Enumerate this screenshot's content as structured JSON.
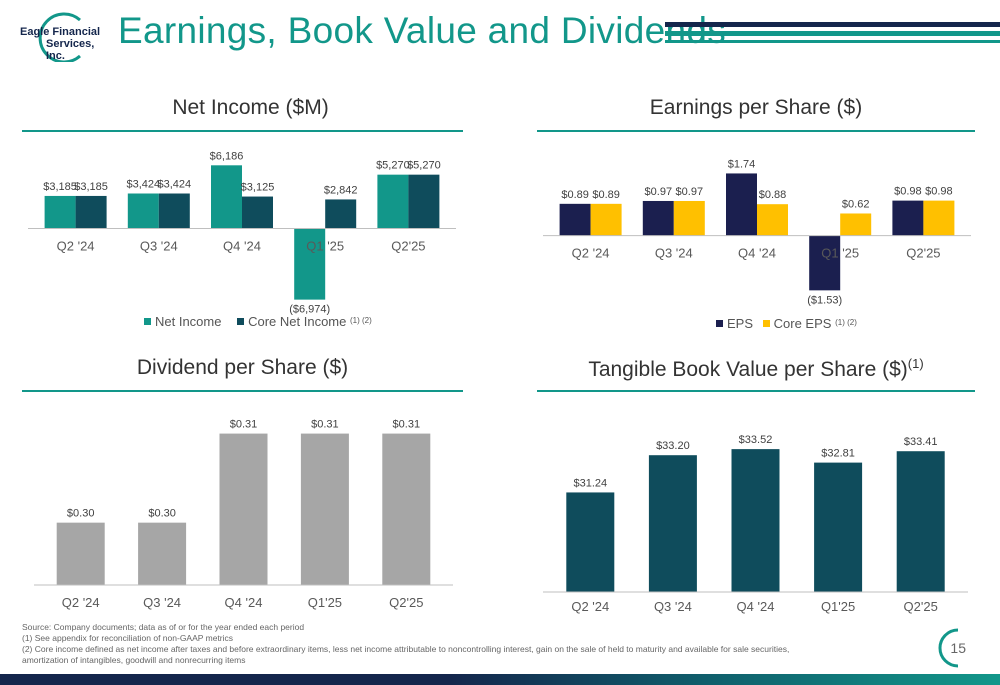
{
  "logo": {
    "line1": "Eagle Financial",
    "line2": "Services, Inc."
  },
  "page_title": "Earnings, Book Value and Dividends",
  "colors": {
    "teal": "#12978a",
    "dark_teal": "#0f4c5c",
    "navy": "#1b1f4f",
    "gold": "#ffc000",
    "gray": "#a6a6a6",
    "accent": "#12978a"
  },
  "chart_data": [
    {
      "id": "net-income",
      "type": "bar",
      "title": "Net Income ($M)",
      "categories": [
        "Q2 '24",
        "Q3 '24",
        "Q4 '24",
        "Q1 '25",
        "Q2'25"
      ],
      "series": [
        {
          "name": "Net Income",
          "values": [
            3.185,
            3.424,
            6.186,
            -6.974,
            5.27
          ],
          "labels": [
            "$3,185",
            "$3,424",
            "$6,186",
            "($6,974)",
            "$5,270"
          ]
        },
        {
          "name": "Core Net Income",
          "values": [
            3.185,
            3.424,
            3.125,
            2.842,
            5.27
          ],
          "labels": [
            "$3,185",
            "$3,424",
            "$3,125",
            "$2,842",
            "$5,270"
          ]
        }
      ],
      "legend_note": "(1) (2)",
      "legend_position": "bottom",
      "ylim": [
        -7.5,
        7.0
      ],
      "grid": false
    },
    {
      "id": "eps",
      "type": "bar",
      "title": "Earnings per Share ($)",
      "categories": [
        "Q2 '24",
        "Q3 '24",
        "Q4 '24",
        "Q1 '25",
        "Q2'25"
      ],
      "series": [
        {
          "name": "EPS",
          "values": [
            0.89,
            0.97,
            1.74,
            -1.53,
            0.98
          ],
          "labels": [
            "$0.89",
            "$0.97",
            "$1.74",
            "($1.53)",
            "$0.98"
          ]
        },
        {
          "name": "Core EPS",
          "values": [
            0.89,
            0.97,
            0.88,
            0.62,
            0.98
          ],
          "labels": [
            "$0.89",
            "$0.97",
            "$0.88",
            "$0.62",
            "$0.98"
          ]
        }
      ],
      "legend_note": "(1) (2)",
      "legend_position": "bottom",
      "ylim": [
        -1.8,
        2.2
      ],
      "grid": false
    },
    {
      "id": "dps",
      "type": "bar",
      "title": "Dividend per Share ($)",
      "categories": [
        "Q2 '24",
        "Q3 '24",
        "Q4 '24",
        "Q1'25",
        "Q2'25"
      ],
      "series": [
        {
          "values": [
            0.3,
            0.3,
            0.31,
            0.31,
            0.31
          ],
          "labels": [
            "$0.30",
            "$0.30",
            "$0.31",
            "$0.31",
            "$0.31"
          ]
        }
      ],
      "ylim": [
        0.293,
        0.3113
      ],
      "grid": false
    },
    {
      "id": "tbv",
      "type": "bar",
      "title": "Tangible Book Value per Share ($)",
      "title_note": "(1)",
      "categories": [
        "Q2 '24",
        "Q3 '24",
        "Q4 '24",
        "Q1'25",
        "Q2'25"
      ],
      "series": [
        {
          "values": [
            31.24,
            33.2,
            33.52,
            32.81,
            33.41
          ],
          "labels": [
            "$31.24",
            "$33.20",
            "$33.52",
            "$32.81",
            "$33.41"
          ]
        }
      ],
      "ylim": [
        26.0,
        34.0
      ],
      "grid": false
    }
  ],
  "footnotes": [
    "Source: Company documents; data as of or for the year ended each period",
    "(1)   See appendix for reconciliation of non-GAAP metrics",
    "(2)   Core income defined as net income after taxes and before extraordinary items, less net income attributable to noncontrolling interest, gain on the sale of held to maturity and available for sale securities,",
    "        amortization of intangibles, goodwill and nonrecurring items"
  ],
  "page_number": "15"
}
